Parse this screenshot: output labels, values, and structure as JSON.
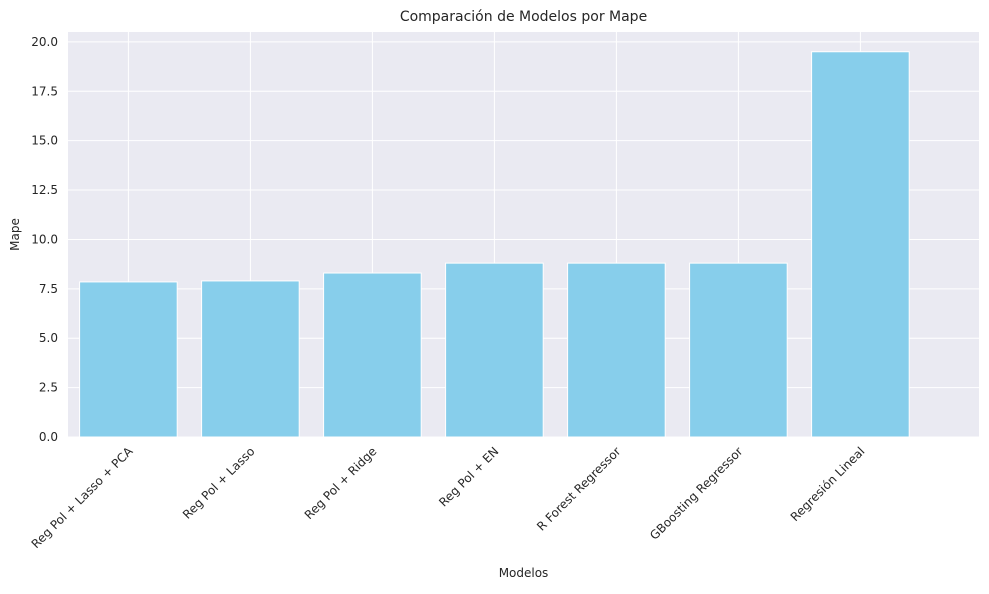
{
  "chart_data": {
    "type": "bar",
    "title": "Comparación de Modelos por Mape",
    "xlabel": "Modelos",
    "ylabel": "Mape",
    "categories": [
      "Reg Pol + Lasso + PCA",
      "Reg Pol + Lasso",
      "Reg Pol + Ridge",
      "Reg Pol + EN",
      "R Forest Regressor",
      "GBoosting Regressor",
      "Regresión Lineal"
    ],
    "values": [
      7.85,
      7.9,
      8.3,
      8.8,
      8.8,
      8.8,
      19.5
    ],
    "ylim": [
      0,
      20.5
    ],
    "yticks": [
      0.0,
      2.5,
      5.0,
      7.5,
      10.0,
      12.5,
      15.0,
      17.5,
      20.0
    ],
    "ytick_labels": [
      "0.0",
      "2.5",
      "5.0",
      "7.5",
      "10.0",
      "12.5",
      "15.0",
      "17.5",
      "20.0"
    ],
    "grid": true,
    "colors": {
      "bar": "#87ceeb",
      "plot_background": "#eaeaf2",
      "grid": "#ffffff",
      "text": "#262626"
    }
  }
}
